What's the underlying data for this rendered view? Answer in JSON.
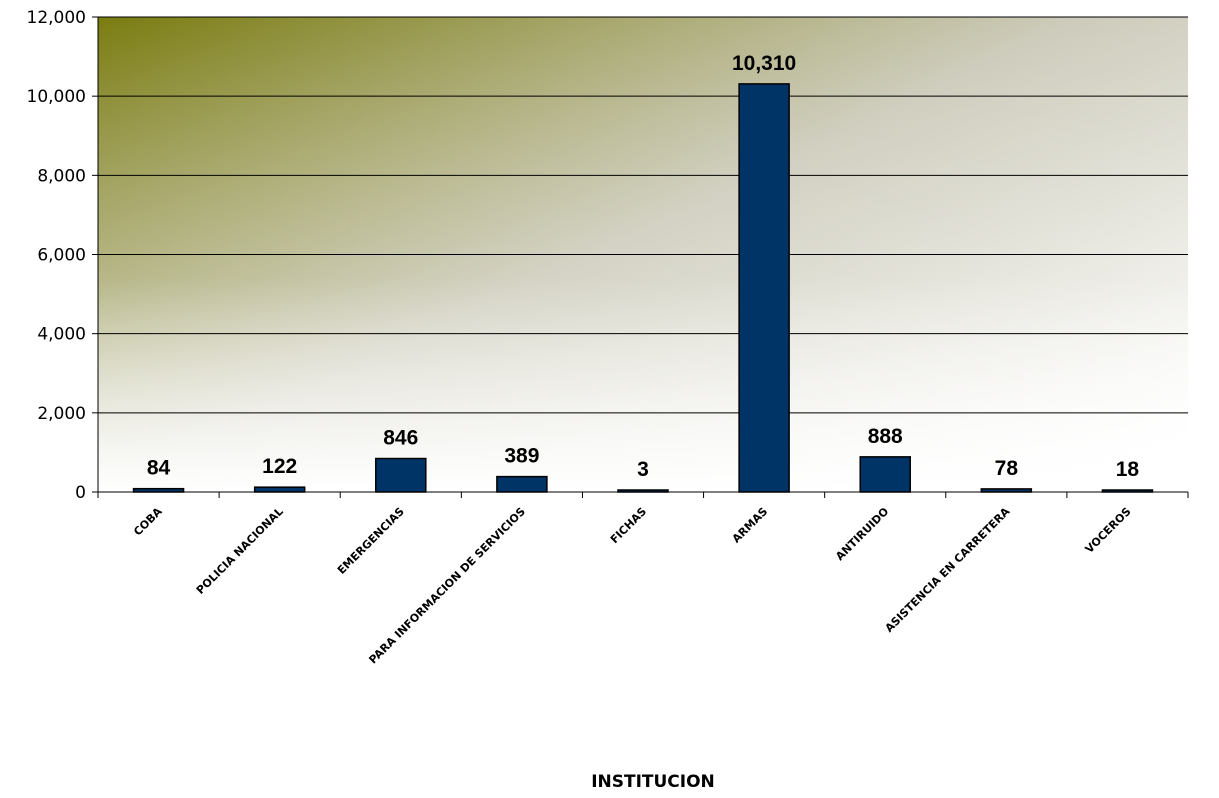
{
  "chart_data": {
    "type": "bar",
    "title": "",
    "xlabel": "INSTITUCION",
    "ylabel": "",
    "categories": [
      "COBA",
      "POLICIA NACIONAL",
      "EMERGENCIAS",
      "PARA INFORMACION DE SERVICIOS",
      "FICHAS",
      "ARMAS",
      "ANTIRUIDO",
      "ASISTENCIA EN CARRETERA",
      "VOCEROS"
    ],
    "values": [
      84,
      122,
      846,
      389,
      3,
      10310,
      888,
      78,
      18
    ],
    "value_labels": [
      "84",
      "122",
      "846",
      "389",
      "3",
      "10,310",
      "888",
      "78",
      "18"
    ],
    "ylim": [
      0,
      12000
    ],
    "yticks": [
      0,
      2000,
      4000,
      6000,
      8000,
      10000,
      12000
    ],
    "ytick_labels": [
      "0",
      "2,000",
      "4,000",
      "6,000",
      "8,000",
      "10,000",
      "12,000"
    ],
    "grid": true,
    "legend": "none",
    "colors": {
      "bar_fill": "#003366",
      "bar_stroke": "#000000",
      "gradient_start": "#7a7c10",
      "gradient_end": "#ffffff"
    }
  }
}
